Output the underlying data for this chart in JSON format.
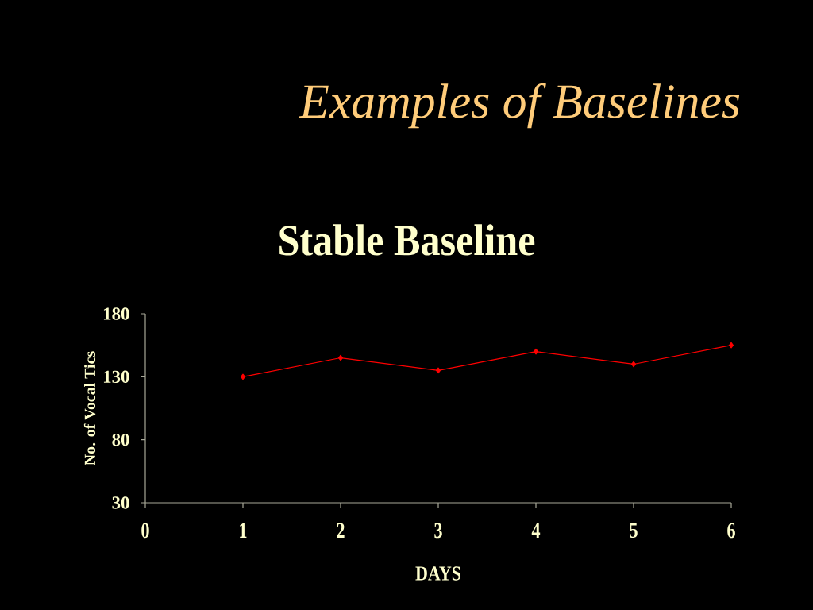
{
  "chart_data": {
    "type": "line",
    "title": "Examples of Baselines",
    "subtitle": "Stable Baseline",
    "xlabel": "DAYS",
    "ylabel": "No. of Vocal Tics",
    "x": [
      1,
      2,
      3,
      4,
      5,
      6
    ],
    "values": [
      130,
      145,
      135,
      150,
      140,
      155
    ],
    "color": "#ff0000",
    "marker": "diamond",
    "line_style": "solid",
    "xlim": [
      0,
      6
    ],
    "ylim": [
      30,
      180
    ],
    "xticks": [
      0,
      1,
      2,
      3,
      4,
      5,
      6
    ],
    "yticks": [
      30,
      80,
      130,
      180
    ],
    "grid": false
  }
}
